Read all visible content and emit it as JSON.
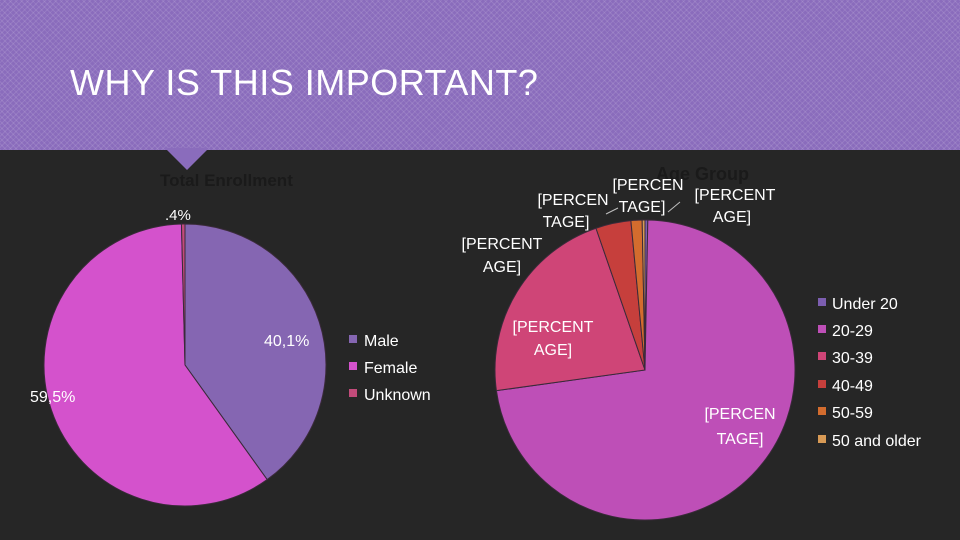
{
  "slide": {
    "title": "WHY IS THIS IMPORTANT?"
  },
  "colors": {
    "header_bg": "#8a6cbc",
    "background": "#262626",
    "text": "#ffffff"
  },
  "chart_data": [
    {
      "type": "pie",
      "title": "Total Enrollment",
      "legend_position": "right",
      "categories": [
        "Male",
        "Female",
        "Unknown"
      ],
      "values": [
        40.1,
        59.5,
        0.4
      ],
      "colors": [
        "#8566b2",
        "#d452cc",
        "#c24b7a"
      ],
      "data_labels": [
        "40,1%",
        "59,5%",
        ".4%"
      ]
    },
    {
      "type": "pie",
      "title": "Age Group",
      "legend_position": "right",
      "categories": [
        "Under 20",
        "20-29",
        "30-39",
        "40-49",
        "50-59",
        "50 and older"
      ],
      "values": [
        0.3,
        72.5,
        21.9,
        3.8,
        1.2,
        0.3
      ],
      "colors": [
        "#7c5eb0",
        "#be4fb7",
        "#cf4577",
        "#c63f3c",
        "#d36c2e",
        "#d89a55"
      ],
      "data_labels": [
        "[PERCENTAGE]",
        "[PERCENTAGE]",
        "[PERCENTAGE]",
        "[PERCENTAGE]",
        "[PERCENTAGE]",
        "[PERCENTAGE]"
      ]
    }
  ]
}
